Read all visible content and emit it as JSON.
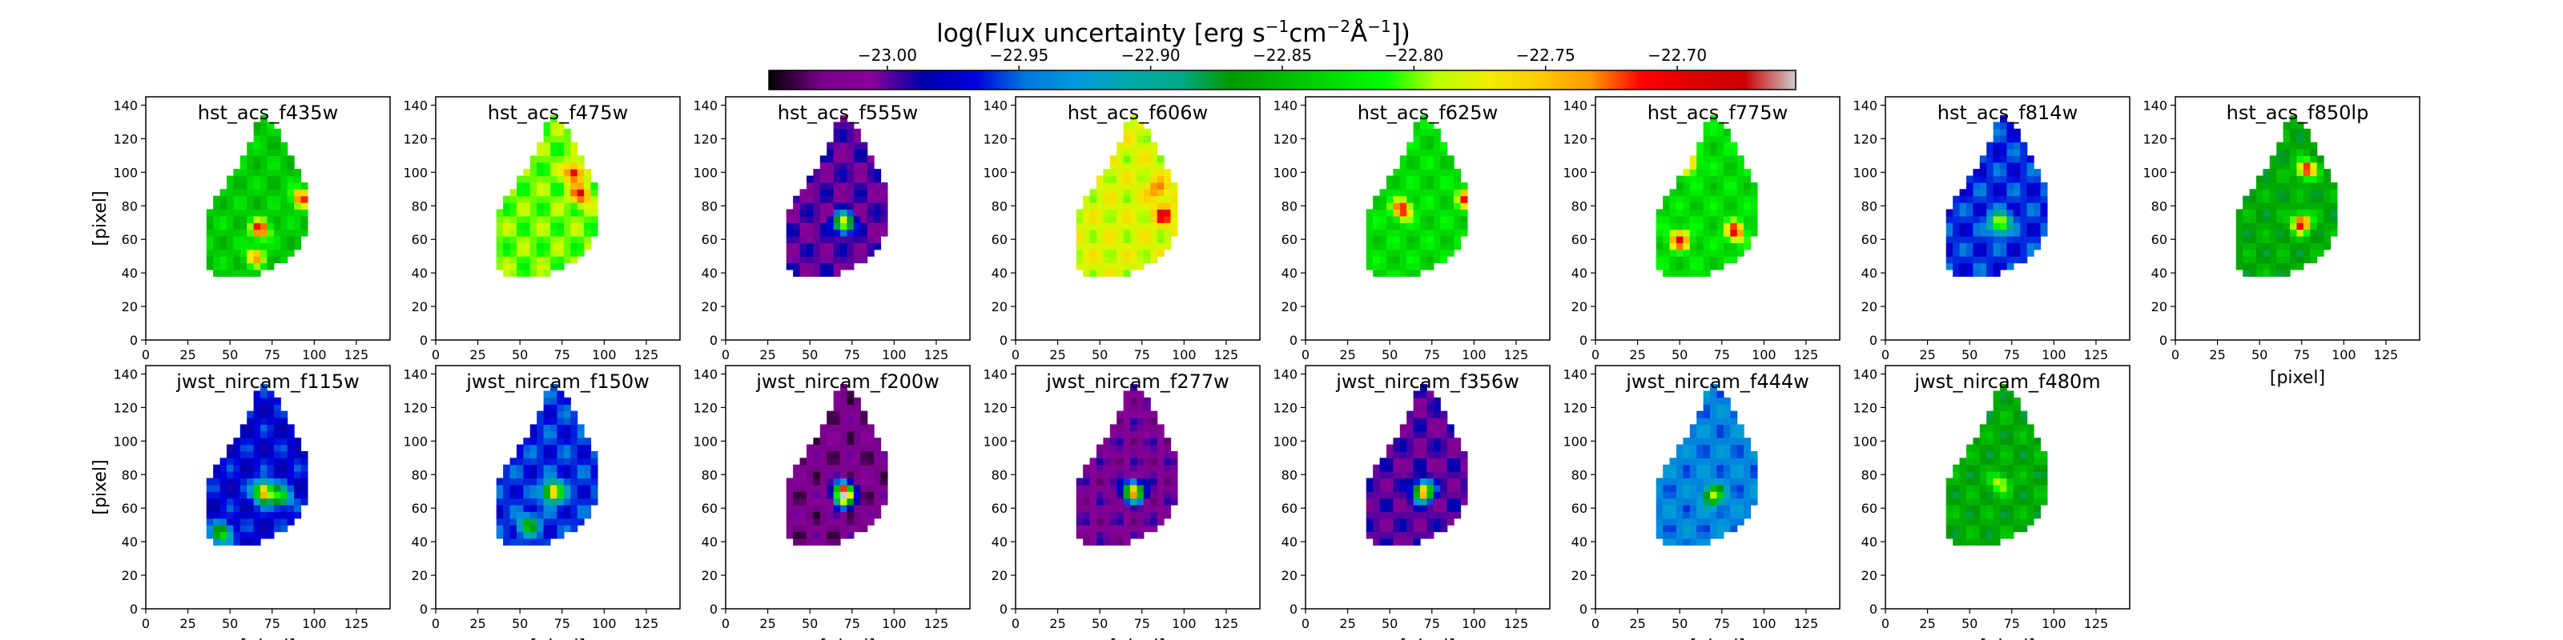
{
  "colorbar": {
    "title_main": "log(Flux uncertainty [erg s",
    "title_sup1": "−1",
    "title_mid1": "cm",
    "title_sup2": "−2",
    "title_mid2": "Å",
    "title_sup3": "−1",
    "title_end": "])",
    "tick_labels": [
      "−23.00",
      "−22.95",
      "−22.90",
      "−22.85",
      "−22.80",
      "−22.75",
      "−22.70"
    ],
    "tick_values": [
      -23.0,
      -22.95,
      -22.9,
      -22.85,
      -22.8,
      -22.75,
      -22.7
    ],
    "vmin": -23.045,
    "vmax": -22.655,
    "colormap": "nipy_spectral"
  },
  "chart_data": {
    "type": "heatmap",
    "xlim": [
      0,
      145
    ],
    "ylim": [
      0,
      145
    ],
    "x_ticks": [
      0,
      25,
      50,
      75,
      100,
      125
    ],
    "x_tick_labels": [
      "0",
      "25",
      "50",
      "75",
      "100",
      "125"
    ],
    "y_ticks": [
      0,
      20,
      40,
      60,
      80,
      100,
      120,
      140
    ],
    "y_tick_labels": [
      "0",
      "20",
      "40",
      "60",
      "80",
      "100",
      "120",
      "140"
    ],
    "xlabel": "[pixel]",
    "ylabel": "[pixel]",
    "panels": [
      {
        "title": "hst_acs_f435w",
        "row": 0,
        "col": 0,
        "base": -22.84,
        "hot": [
          [
            68,
            66,
            -22.7
          ],
          [
            92,
            85,
            -22.71
          ],
          [
            65,
            50,
            -22.74
          ]
        ]
      },
      {
        "title": "hst_acs_f475w",
        "row": 0,
        "col": 1,
        "base": -22.8,
        "hot": [
          [
            82,
            100,
            -22.69
          ],
          [
            86,
            87,
            -22.7
          ]
        ]
      },
      {
        "title": "hst_acs_f555w",
        "row": 0,
        "col": 2,
        "base": -23.0,
        "hot": [
          [
            70,
            70,
            -22.76
          ]
        ]
      },
      {
        "title": "hst_acs_f606w",
        "row": 0,
        "col": 3,
        "base": -22.78,
        "hot": [
          [
            88,
            75,
            -22.7
          ],
          [
            84,
            90,
            -22.72
          ]
        ]
      },
      {
        "title": "hst_acs_f625w",
        "row": 0,
        "col": 4,
        "base": -22.83,
        "hot": [
          [
            57,
            78,
            -22.7
          ],
          [
            96,
            85,
            -22.71
          ]
        ]
      },
      {
        "title": "hst_acs_f775w",
        "row": 0,
        "col": 5,
        "base": -22.83,
        "hot": [
          [
            50,
            60,
            -22.69
          ],
          [
            83,
            65,
            -22.7
          ],
          [
            55,
            105,
            -22.72
          ]
        ]
      },
      {
        "title": "hst_acs_f814w",
        "row": 0,
        "col": 6,
        "base": -22.96,
        "hot": [
          [
            68,
            70,
            -22.75
          ]
        ]
      },
      {
        "title": "hst_acs_f850lp",
        "row": 0,
        "col": 7,
        "base": -22.86,
        "hot": [
          [
            75,
            70,
            -22.69
          ],
          [
            78,
            102,
            -22.7
          ]
        ]
      },
      {
        "title": "jwst_nircam_f115w",
        "row": 1,
        "col": 0,
        "base": -22.97,
        "hot": [
          [
            70,
            70,
            -22.71
          ],
          [
            80,
            67,
            -22.82
          ],
          [
            45,
            45,
            -22.82
          ]
        ]
      },
      {
        "title": "jwst_nircam_f150w",
        "row": 1,
        "col": 1,
        "base": -22.96,
        "hot": [
          [
            70,
            70,
            -22.72
          ],
          [
            55,
            50,
            -22.84
          ]
        ]
      },
      {
        "title": "jwst_nircam_f200w",
        "row": 1,
        "col": 2,
        "base": -23.02,
        "hot": [
          [
            70,
            70,
            -22.71
          ],
          [
            70,
            65,
            -22.88
          ]
        ]
      },
      {
        "title": "jwst_nircam_f277w",
        "row": 1,
        "col": 3,
        "base": -23.01,
        "hot": [
          [
            70,
            70,
            -22.71
          ]
        ]
      },
      {
        "title": "jwst_nircam_f356w",
        "row": 1,
        "col": 4,
        "base": -23.0,
        "hot": [
          [
            70,
            70,
            -22.71
          ]
        ]
      },
      {
        "title": "jwst_nircam_f444w",
        "row": 1,
        "col": 5,
        "base": -22.94,
        "hot": [
          [
            70,
            68,
            -22.79
          ]
        ]
      },
      {
        "title": "jwst_nircam_f480m",
        "row": 1,
        "col": 6,
        "base": -22.86,
        "hot": [
          [
            68,
            75,
            -22.78
          ]
        ]
      }
    ]
  }
}
